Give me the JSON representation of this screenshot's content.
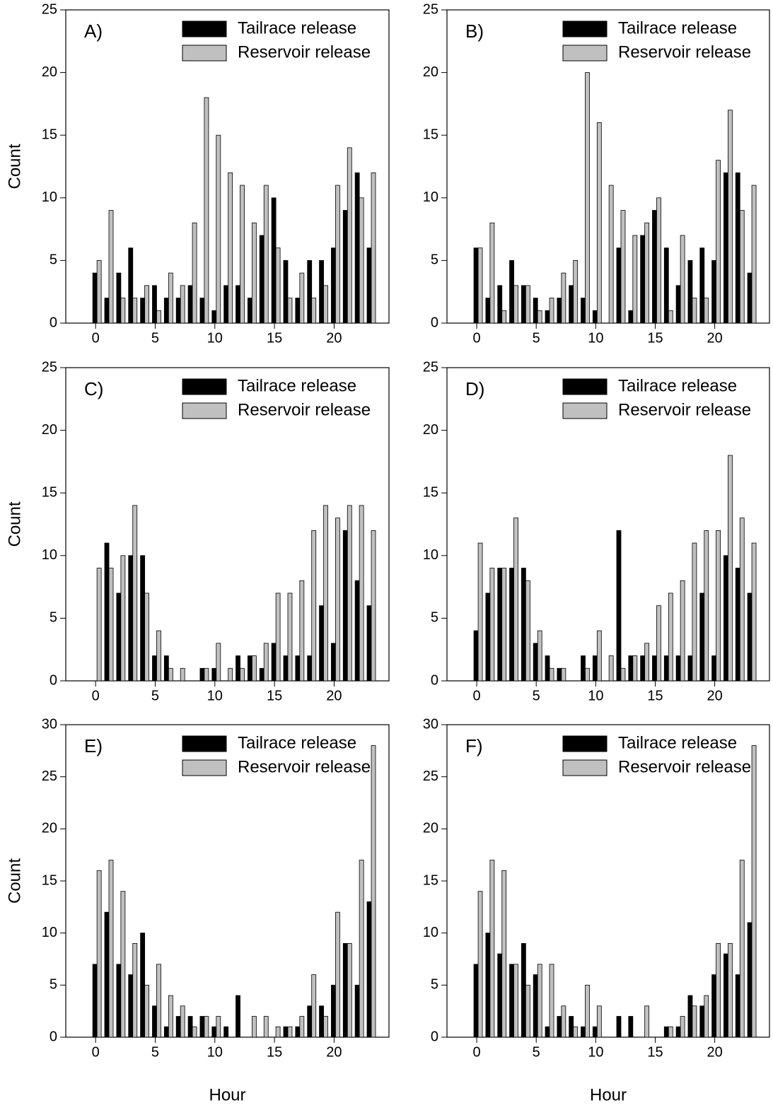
{
  "chart_data": [
    {
      "type": "bar",
      "label": "A)",
      "y_label": "Count",
      "x": [
        0,
        1,
        2,
        3,
        4,
        5,
        6,
        7,
        8,
        9,
        10,
        11,
        12,
        13,
        14,
        15,
        16,
        17,
        18,
        19,
        20,
        21,
        22,
        23
      ],
      "series": [
        {
          "name": "Tailrace release",
          "color": "#000000",
          "values": [
            4,
            2,
            4,
            6,
            2,
            3,
            2,
            2,
            3,
            2,
            1,
            3,
            3,
            2,
            7,
            10,
            5,
            2,
            5,
            5,
            6,
            9,
            12,
            6
          ]
        },
        {
          "name": "Reservoir release",
          "color": "#c0c0c0",
          "values": [
            5,
            9,
            2,
            2,
            3,
            1,
            4,
            3,
            8,
            18,
            15,
            12,
            11,
            8,
            11,
            6,
            2,
            4,
            2,
            3,
            11,
            14,
            10,
            12
          ]
        }
      ],
      "xlim": [
        -2.5,
        24.6
      ],
      "xticks": [
        0,
        5,
        10,
        15,
        20
      ],
      "ylim": [
        0,
        25
      ],
      "yticks": [
        0,
        5,
        10,
        15,
        20,
        25
      ]
    },
    {
      "type": "bar",
      "label": "B)",
      "x": [
        0,
        1,
        2,
        3,
        4,
        5,
        6,
        7,
        8,
        9,
        10,
        11,
        12,
        13,
        14,
        15,
        16,
        17,
        18,
        19,
        20,
        21,
        22,
        23
      ],
      "series": [
        {
          "name": "Tailrace release",
          "color": "#000000",
          "values": [
            6,
            2,
            3,
            5,
            3,
            2,
            1,
            2,
            3,
            2,
            1,
            0,
            6,
            1,
            7,
            9,
            6,
            3,
            5,
            6,
            5,
            12,
            12,
            4
          ]
        },
        {
          "name": "Reservoir release",
          "color": "#c0c0c0",
          "values": [
            6,
            8,
            1,
            3,
            3,
            1,
            2,
            4,
            5,
            20,
            16,
            11,
            9,
            7,
            8,
            10,
            1,
            7,
            2,
            2,
            13,
            17,
            9,
            11
          ]
        }
      ],
      "xlim": [
        -2.5,
        24.6
      ],
      "xticks": [
        0,
        5,
        10,
        15,
        20
      ],
      "ylim": [
        0,
        25
      ],
      "yticks": [
        0,
        5,
        10,
        15,
        20,
        25
      ]
    },
    {
      "type": "bar",
      "label": "C)",
      "y_label": "Count",
      "x": [
        0,
        1,
        2,
        3,
        4,
        5,
        6,
        7,
        8,
        9,
        10,
        11,
        12,
        13,
        14,
        15,
        16,
        17,
        18,
        19,
        20,
        21,
        22,
        23
      ],
      "series": [
        {
          "name": "Tailrace release",
          "color": "#000000",
          "values": [
            0,
            11,
            7,
            10,
            10,
            2,
            2,
            0,
            0,
            1,
            1,
            0,
            2,
            2,
            1,
            3,
            2,
            2,
            2,
            6,
            3,
            12,
            8,
            6
          ]
        },
        {
          "name": "Reservoir release",
          "color": "#c0c0c0",
          "values": [
            9,
            9,
            10,
            14,
            7,
            4,
            1,
            1,
            0,
            1,
            3,
            1,
            1,
            2,
            3,
            7,
            7,
            8,
            12,
            14,
            13,
            14,
            14,
            12
          ]
        }
      ],
      "xlim": [
        -2.5,
        24.6
      ],
      "xticks": [
        0,
        5,
        10,
        15,
        20
      ],
      "ylim": [
        0,
        25
      ],
      "yticks": [
        0,
        5,
        10,
        15,
        20,
        25
      ]
    },
    {
      "type": "bar",
      "label": "D)",
      "x": [
        0,
        1,
        2,
        3,
        4,
        5,
        6,
        7,
        8,
        9,
        10,
        11,
        12,
        13,
        14,
        15,
        16,
        17,
        18,
        19,
        20,
        21,
        22,
        23
      ],
      "series": [
        {
          "name": "Tailrace release",
          "color": "#000000",
          "values": [
            4,
            7,
            9,
            9,
            9,
            3,
            2,
            1,
            0,
            2,
            2,
            0,
            12,
            2,
            2,
            2,
            2,
            2,
            2,
            7,
            2,
            10,
            9,
            7
          ]
        },
        {
          "name": "Reservoir release",
          "color": "#c0c0c0",
          "values": [
            11,
            9,
            9,
            13,
            8,
            4,
            1,
            1,
            0,
            1,
            4,
            2,
            1,
            2,
            3,
            6,
            7,
            8,
            11,
            12,
            12,
            18,
            13,
            11
          ]
        }
      ],
      "xlim": [
        -2.5,
        24.6
      ],
      "xticks": [
        0,
        5,
        10,
        15,
        20
      ],
      "ylim": [
        0,
        25
      ],
      "yticks": [
        0,
        5,
        10,
        15,
        20,
        25
      ]
    },
    {
      "type": "bar",
      "label": "E)",
      "y_label": "Count",
      "x_label": "Hour",
      "x": [
        0,
        1,
        2,
        3,
        4,
        5,
        6,
        7,
        8,
        9,
        10,
        11,
        12,
        13,
        14,
        15,
        16,
        17,
        18,
        19,
        20,
        21,
        22,
        23
      ],
      "series": [
        {
          "name": "Tailrace release",
          "color": "#000000",
          "values": [
            7,
            12,
            7,
            6,
            10,
            3,
            1,
            2,
            2,
            2,
            1,
            1,
            4,
            0,
            0,
            0,
            1,
            1,
            3,
            3,
            5,
            9,
            5,
            13
          ]
        },
        {
          "name": "Reservoir release",
          "color": "#c0c0c0",
          "values": [
            16,
            17,
            14,
            9,
            5,
            7,
            4,
            3,
            1,
            2,
            2,
            0,
            0,
            2,
            2,
            1,
            1,
            2,
            6,
            2,
            12,
            9,
            17,
            28
          ]
        }
      ],
      "xlim": [
        -2.5,
        24.6
      ],
      "xticks": [
        0,
        5,
        10,
        15,
        20
      ],
      "ylim": [
        0,
        30
      ],
      "yticks": [
        0,
        5,
        10,
        15,
        20,
        25,
        30
      ]
    },
    {
      "type": "bar",
      "label": "F)",
      "x_label": "Hour",
      "x": [
        0,
        1,
        2,
        3,
        4,
        5,
        6,
        7,
        8,
        9,
        10,
        11,
        12,
        13,
        14,
        15,
        16,
        17,
        18,
        19,
        20,
        21,
        22,
        23
      ],
      "series": [
        {
          "name": "Tailrace release",
          "color": "#000000",
          "values": [
            7,
            10,
            8,
            7,
            9,
            6,
            1,
            2,
            2,
            1,
            1,
            0,
            2,
            2,
            0,
            0,
            1,
            1,
            4,
            3,
            6,
            8,
            6,
            11
          ]
        },
        {
          "name": "Reservoir release",
          "color": "#c0c0c0",
          "values": [
            14,
            17,
            16,
            7,
            5,
            7,
            7,
            3,
            1,
            5,
            3,
            0,
            0,
            0,
            3,
            0,
            1,
            2,
            3,
            4,
            9,
            9,
            17,
            28
          ]
        }
      ],
      "xlim": [
        -2.5,
        24.6
      ],
      "xticks": [
        0,
        5,
        10,
        15,
        20
      ],
      "ylim": [
        0,
        30
      ],
      "yticks": [
        0,
        5,
        10,
        15,
        20,
        25,
        30
      ]
    }
  ]
}
